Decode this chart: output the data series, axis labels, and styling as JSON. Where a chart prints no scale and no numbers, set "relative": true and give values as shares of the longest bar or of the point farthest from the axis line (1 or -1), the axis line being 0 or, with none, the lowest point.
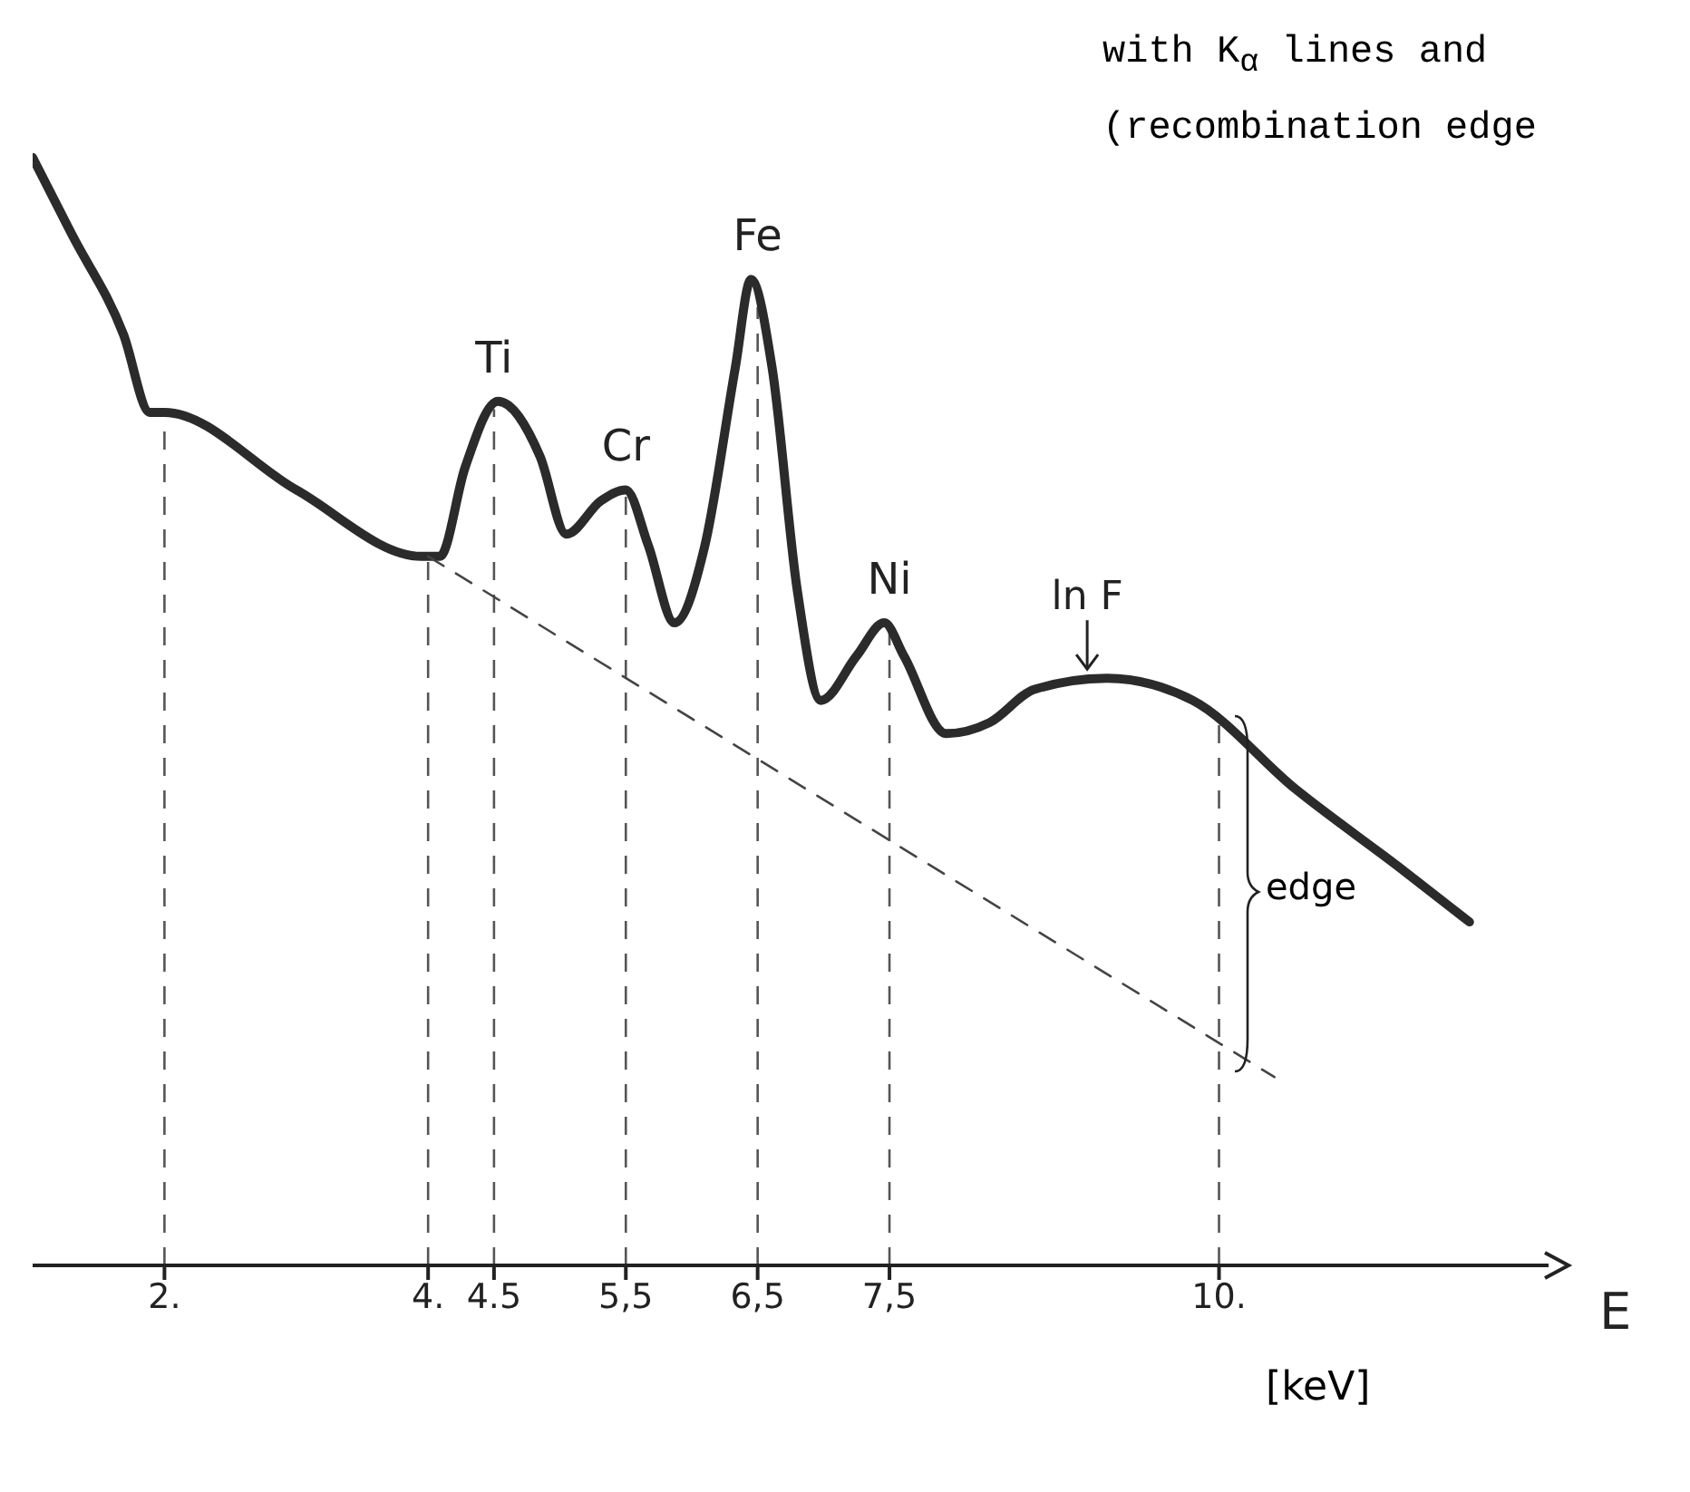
{
  "chart_data": {
    "type": "line",
    "relative": true,
    "xlabel": "E",
    "xlim": [
      1,
      12.5
    ],
    "xticks": [
      {
        "value": 2,
        "label": "2."
      },
      {
        "value": 4,
        "label": "4."
      },
      {
        "value": 4.5,
        "label": "4.5"
      },
      {
        "value": 5.5,
        "label": "5,5"
      },
      {
        "value": 6.5,
        "label": "6,5"
      },
      {
        "value": 7.5,
        "label": "7,5"
      },
      {
        "value": 10,
        "label": "10."
      }
    ],
    "marker": "none",
    "line_style": "solid",
    "series": [
      {
        "color": "#2b2b2b",
        "x": [
          1.0,
          1.3,
          1.69,
          1.89,
          2.0,
          3.0,
          3.95,
          4.09,
          4.28,
          4.53,
          4.85,
          5.05,
          5.31,
          5.5,
          5.67,
          5.87,
          6.1,
          6.33,
          6.45,
          6.61,
          6.8,
          6.98,
          7.25,
          7.46,
          7.61,
          7.93,
          8.26,
          8.6,
          9.15,
          9.8,
          10.58,
          11.36,
          11.9
        ],
        "values": [
          1.0,
          0.93,
          0.84,
          0.77,
          0.77,
          0.7,
          0.64,
          0.64,
          0.72,
          0.78,
          0.73,
          0.66,
          0.69,
          0.7,
          0.65,
          0.58,
          0.65,
          0.81,
          0.89,
          0.81,
          0.61,
          0.51,
          0.55,
          0.58,
          0.55,
          0.48,
          0.49,
          0.52,
          0.53,
          0.51,
          0.43,
          0.36,
          0.31
        ]
      },
      {
        "color": "#444444",
        "line_style": "dashed",
        "x": [
          4.0,
          10.42
        ],
        "values": [
          0.64,
          0.17
        ]
      }
    ],
    "ref_lines": [
      {
        "axis": "x",
        "value": 2,
        "color": "#555555",
        "line_style": "dashed"
      },
      {
        "axis": "x",
        "value": 4,
        "color": "#555555",
        "line_style": "dashed"
      },
      {
        "axis": "x",
        "value": 4.5,
        "color": "#555555",
        "line_style": "dashed"
      },
      {
        "axis": "x",
        "value": 5.5,
        "color": "#555555",
        "line_style": "dashed"
      },
      {
        "axis": "x",
        "value": 6.5,
        "color": "#555555",
        "line_style": "dashed"
      },
      {
        "axis": "x",
        "value": 7.5,
        "color": "#555555",
        "line_style": "dashed"
      },
      {
        "axis": "x",
        "value": 10,
        "color": "#555555",
        "line_style": "dashed"
      }
    ],
    "annotations": [
      "with K$_{α}$ lines and",
      "(recombination edge",
      {
        "text": "Ti",
        "x": 4.5,
        "y": 0.78
      },
      {
        "text": "Cr",
        "x": 5.5,
        "y": 0.7
      },
      {
        "text": "Fe",
        "x": 6.5,
        "y": 0.89
      },
      {
        "text": "Ni",
        "x": 7.5,
        "y": 0.58
      },
      {
        "text": "ln F",
        "x": 9.0,
        "y": 0.53
      },
      "edge",
      "[keV]"
    ]
  }
}
